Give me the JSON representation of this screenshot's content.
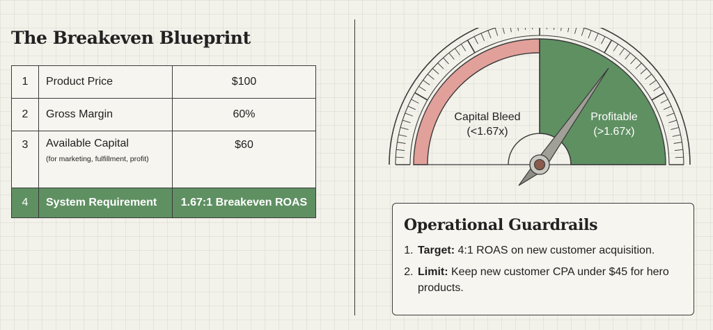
{
  "title": "The Breakeven Blueprint",
  "table": [
    {
      "num": "1",
      "label": "Product Price",
      "sublabel": "",
      "value": "$100"
    },
    {
      "num": "2",
      "label": "Gross Margin",
      "sublabel": "",
      "value": "60%"
    },
    {
      "num": "3",
      "label": "Available Capital",
      "sublabel": "(for marketing, fulfillment, profit)",
      "value": "$60"
    },
    {
      "num": "4",
      "label": "System Requirement",
      "sublabel": "",
      "value": "1.67:1 Breakeven ROAS"
    }
  ],
  "gauge": {
    "bleed_label": "Capital Bleed",
    "bleed_range": "(<1.67x)",
    "profit_label": "Profitable",
    "profit_range": "(>1.67x)",
    "bleed_color": "#e2a09b",
    "profit_color": "#5f9062"
  },
  "guardrails": {
    "title": "Operational Guardrails",
    "items": [
      {
        "bold": "Target:",
        "text": " 4:1 ROAS on new customer acquisition."
      },
      {
        "bold": "Limit:",
        "text": " Keep new customer CPA under $45 for hero products."
      }
    ]
  }
}
